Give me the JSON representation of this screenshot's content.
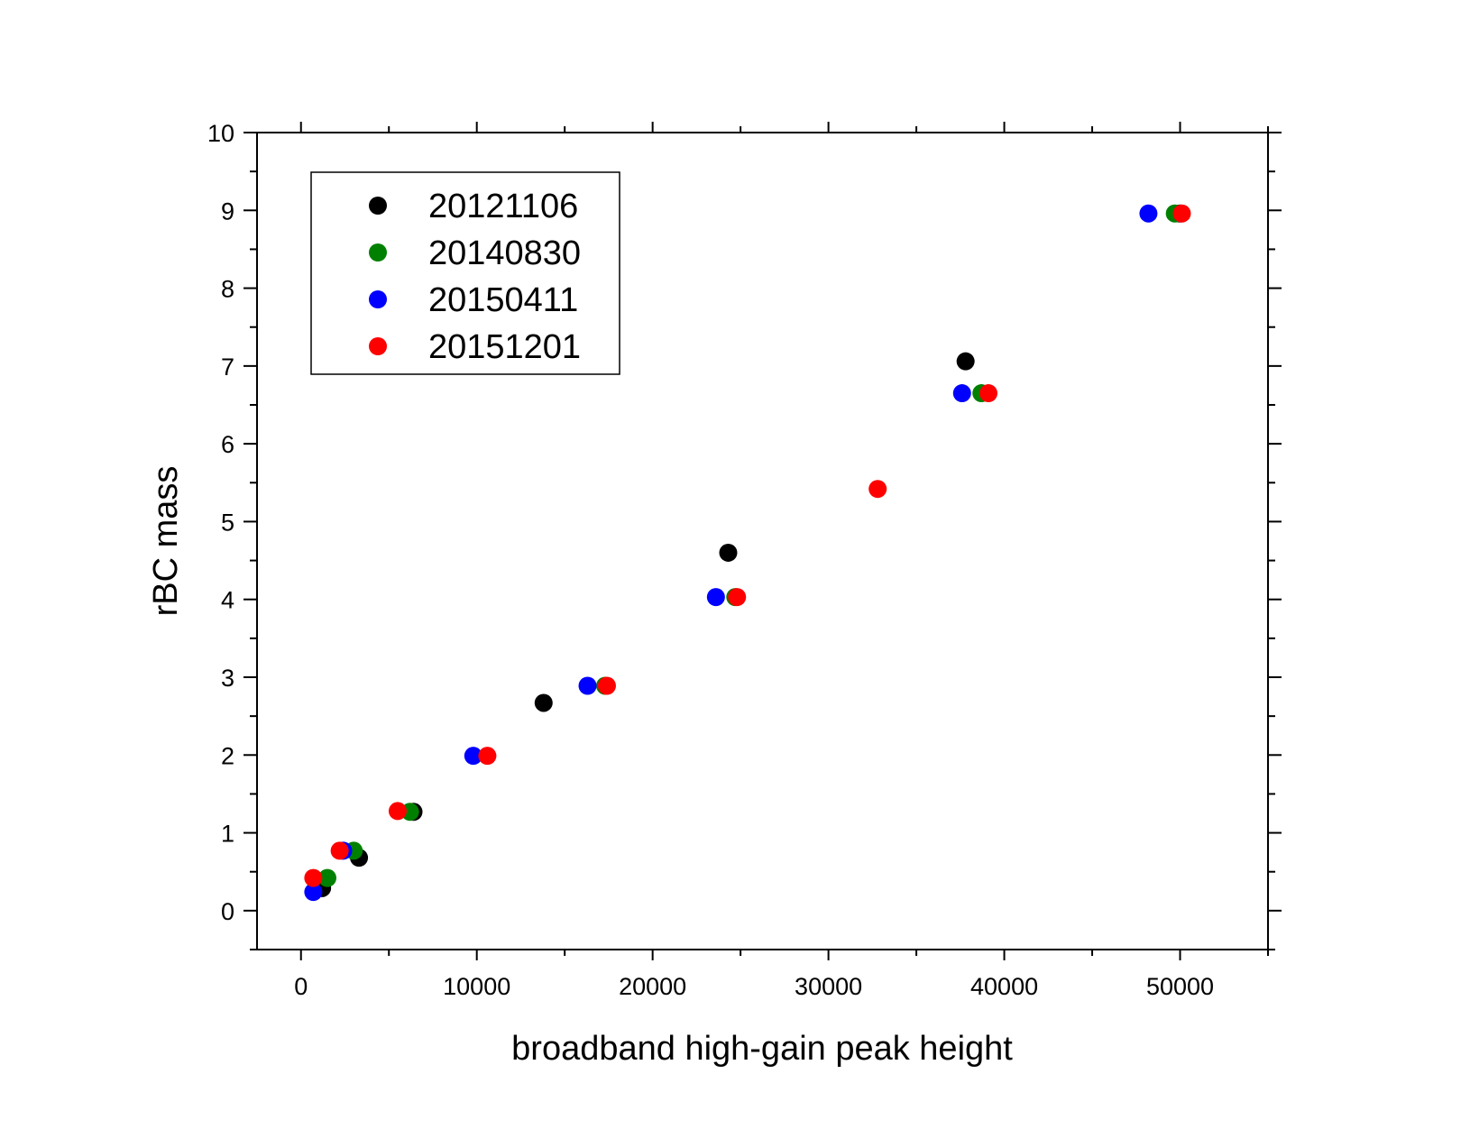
{
  "chart_data": {
    "type": "scatter",
    "title": "",
    "xlabel": "broadband high-gain peak height",
    "ylabel": "rBC mass",
    "xlim": [
      -2500,
      55000
    ],
    "ylim": [
      -0.5,
      10
    ],
    "xticks": [
      0,
      10000,
      20000,
      30000,
      40000,
      50000
    ],
    "xtick_labels": [
      "0",
      "10000",
      "20000",
      "30000",
      "40000",
      "50000"
    ],
    "yticks": [
      0,
      1,
      2,
      3,
      4,
      5,
      6,
      7,
      8,
      9,
      10
    ],
    "ytick_labels": [
      "0",
      "1",
      "2",
      "3",
      "4",
      "5",
      "6",
      "7",
      "8",
      "9",
      "10"
    ],
    "grid": false,
    "legend_position": "top-left",
    "series": [
      {
        "name": "20121106",
        "color": "#000000",
        "points": [
          [
            1200,
            0.29
          ],
          [
            3300,
            0.68
          ],
          [
            6400,
            1.27
          ],
          [
            13800,
            2.67
          ],
          [
            24300,
            4.6
          ],
          [
            37800,
            7.06
          ],
          [
            50000,
            8.96
          ]
        ]
      },
      {
        "name": "20140830",
        "color": "#008000",
        "points": [
          [
            1500,
            0.42
          ],
          [
            3000,
            0.77
          ],
          [
            6200,
            1.27
          ],
          [
            17300,
            2.89
          ],
          [
            24700,
            4.03
          ],
          [
            38700,
            6.65
          ],
          [
            49700,
            8.96
          ]
        ]
      },
      {
        "name": "20150411",
        "color": "#0000ff",
        "points": [
          [
            700,
            0.24
          ],
          [
            2400,
            0.77
          ],
          [
            9800,
            1.99
          ],
          [
            16300,
            2.89
          ],
          [
            23600,
            4.03
          ],
          [
            37600,
            6.65
          ],
          [
            48200,
            8.96
          ]
        ]
      },
      {
        "name": "20151201",
        "color": "#ff0000",
        "points": [
          [
            700,
            0.42
          ],
          [
            2200,
            0.77
          ],
          [
            5500,
            1.28
          ],
          [
            10600,
            1.99
          ],
          [
            17400,
            2.89
          ],
          [
            24800,
            4.03
          ],
          [
            32800,
            5.42
          ],
          [
            39100,
            6.65
          ],
          [
            50100,
            8.96
          ]
        ]
      }
    ]
  }
}
